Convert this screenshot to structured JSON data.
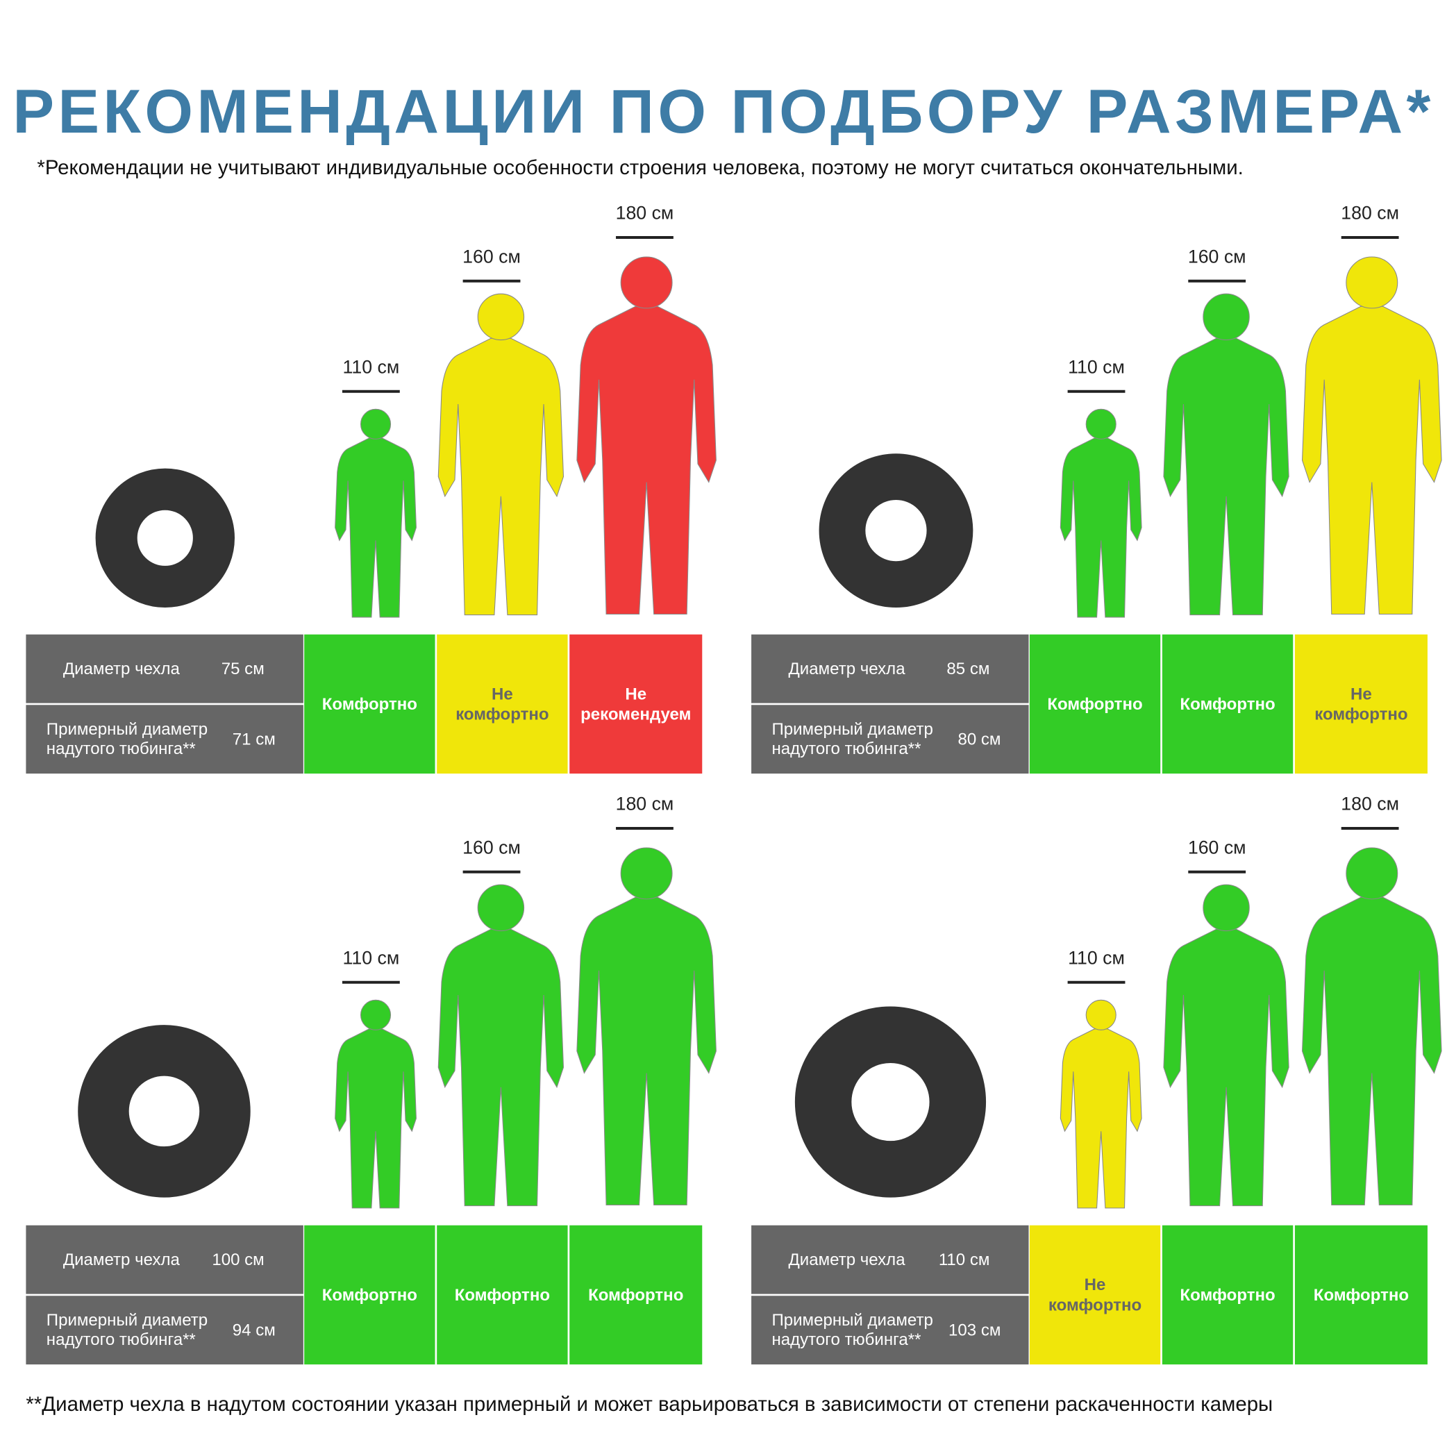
{
  "header": {
    "title": "РЕКОМЕНДАЦИИ ПО ПОДБОРУ РАЗМЕРА*",
    "subtitle": "*Рекомендации не учитывают индивидуальные особенности строения человека, поэтому не могут считаться окончательными."
  },
  "footnote": "**Диаметр чехла в надутом состоянии указан примерный и может варьироваться в зависимости от степени раскаченности камеры",
  "panels": [
    {
      "heights": [
        "110 см",
        "160 см",
        "180 см"
      ],
      "cover_label": "Диаметр чехла",
      "cover_value": "75 см",
      "tube_label": "Примерный диаметр надутого тюбинга**",
      "tube_value": "71 см",
      "statuses": [
        {
          "text": "Комфортно",
          "color": "#33cc26",
          "text_color": "#ffffff"
        },
        {
          "text": "Не комфортно",
          "color": "#f0e60a",
          "text_color": "#666666"
        },
        {
          "text": "Не рекомендуем",
          "color": "#ef3a3a",
          "text_color": "#ffffff"
        }
      ]
    },
    {
      "heights": [
        "110 см",
        "160 см",
        "180 см"
      ],
      "cover_label": "Диаметр чехла",
      "cover_value": "85 см",
      "tube_label": "Примерный диаметр надутого тюбинга**",
      "tube_value": "80 см",
      "statuses": [
        {
          "text": "Комфортно",
          "color": "#33cc26",
          "text_color": "#ffffff"
        },
        {
          "text": "Комфортно",
          "color": "#33cc26",
          "text_color": "#ffffff"
        },
        {
          "text": "Не комфортно",
          "color": "#f0e60a",
          "text_color": "#666666"
        }
      ]
    },
    {
      "heights": [
        "110 см",
        "160 см",
        "180 см"
      ],
      "cover_label": "Диаметр чехла",
      "cover_value": "100 см",
      "tube_label": "Примерный диаметр надутого тюбинга**",
      "tube_value": "94 см",
      "statuses": [
        {
          "text": "Комфортно",
          "color": "#33cc26",
          "text_color": "#ffffff"
        },
        {
          "text": "Комфортно",
          "color": "#33cc26",
          "text_color": "#ffffff"
        },
        {
          "text": "Комфортно",
          "color": "#33cc26",
          "text_color": "#ffffff"
        }
      ]
    },
    {
      "heights": [
        "110 см",
        "160 см",
        "180 см"
      ],
      "cover_label": "Диаметр чехла",
      "cover_value": "110 см",
      "tube_label": "Примерный диаметр надутого тюбинга**",
      "tube_value": "103 см",
      "statuses": [
        {
          "text": "Не комфортно",
          "color": "#f0e60a",
          "text_color": "#666666"
        },
        {
          "text": "Комфортно",
          "color": "#33cc26",
          "text_color": "#ffffff"
        },
        {
          "text": "Комфортно",
          "color": "#33cc26",
          "text_color": "#ffffff"
        }
      ]
    }
  ]
}
